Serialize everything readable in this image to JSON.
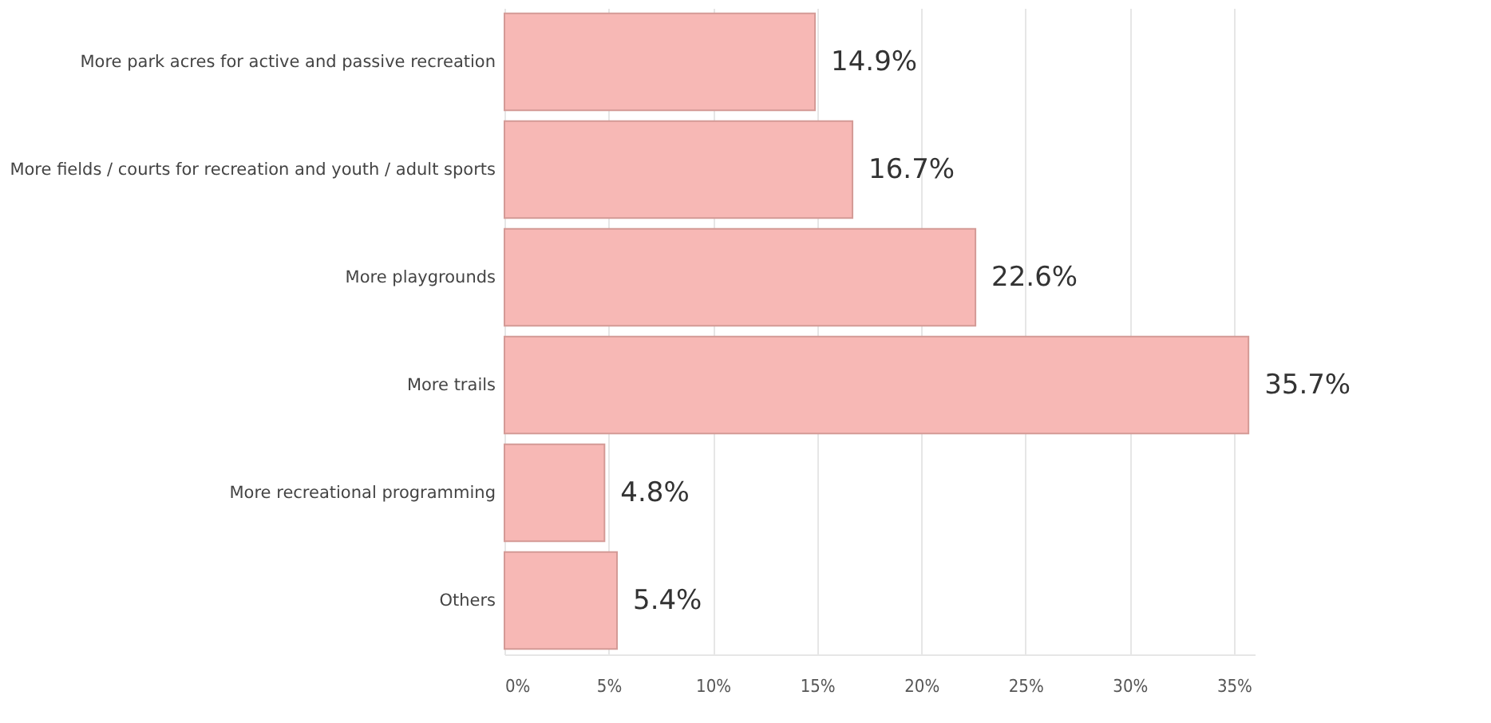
{
  "chart_data": {
    "type": "bar",
    "orientation": "horizontal",
    "categories": [
      "More park acres for active and passive recreation",
      "More fields / courts for recreation and youth / adult sports",
      "More playgrounds",
      "More trails",
      "More recreational programming",
      "Others"
    ],
    "values": [
      14.9,
      16.7,
      22.6,
      35.7,
      4.8,
      5.4
    ],
    "value_labels": [
      "14.9%",
      "16.7%",
      "22.6%",
      "35.7%",
      "4.8%",
      "5.4%"
    ],
    "color": "#f7b8b5",
    "xlim": [
      0,
      36
    ],
    "xticks": [
      {
        "value": 0,
        "label": "0%"
      },
      {
        "value": 5,
        "label": "5%"
      },
      {
        "value": 10,
        "label": "10%"
      },
      {
        "value": 15,
        "label": "15%"
      },
      {
        "value": 20,
        "label": "20%"
      },
      {
        "value": 25,
        "label": "25%"
      },
      {
        "value": 30,
        "label": "30%"
      },
      {
        "value": 35,
        "label": "35%"
      }
    ],
    "grid": "x"
  }
}
